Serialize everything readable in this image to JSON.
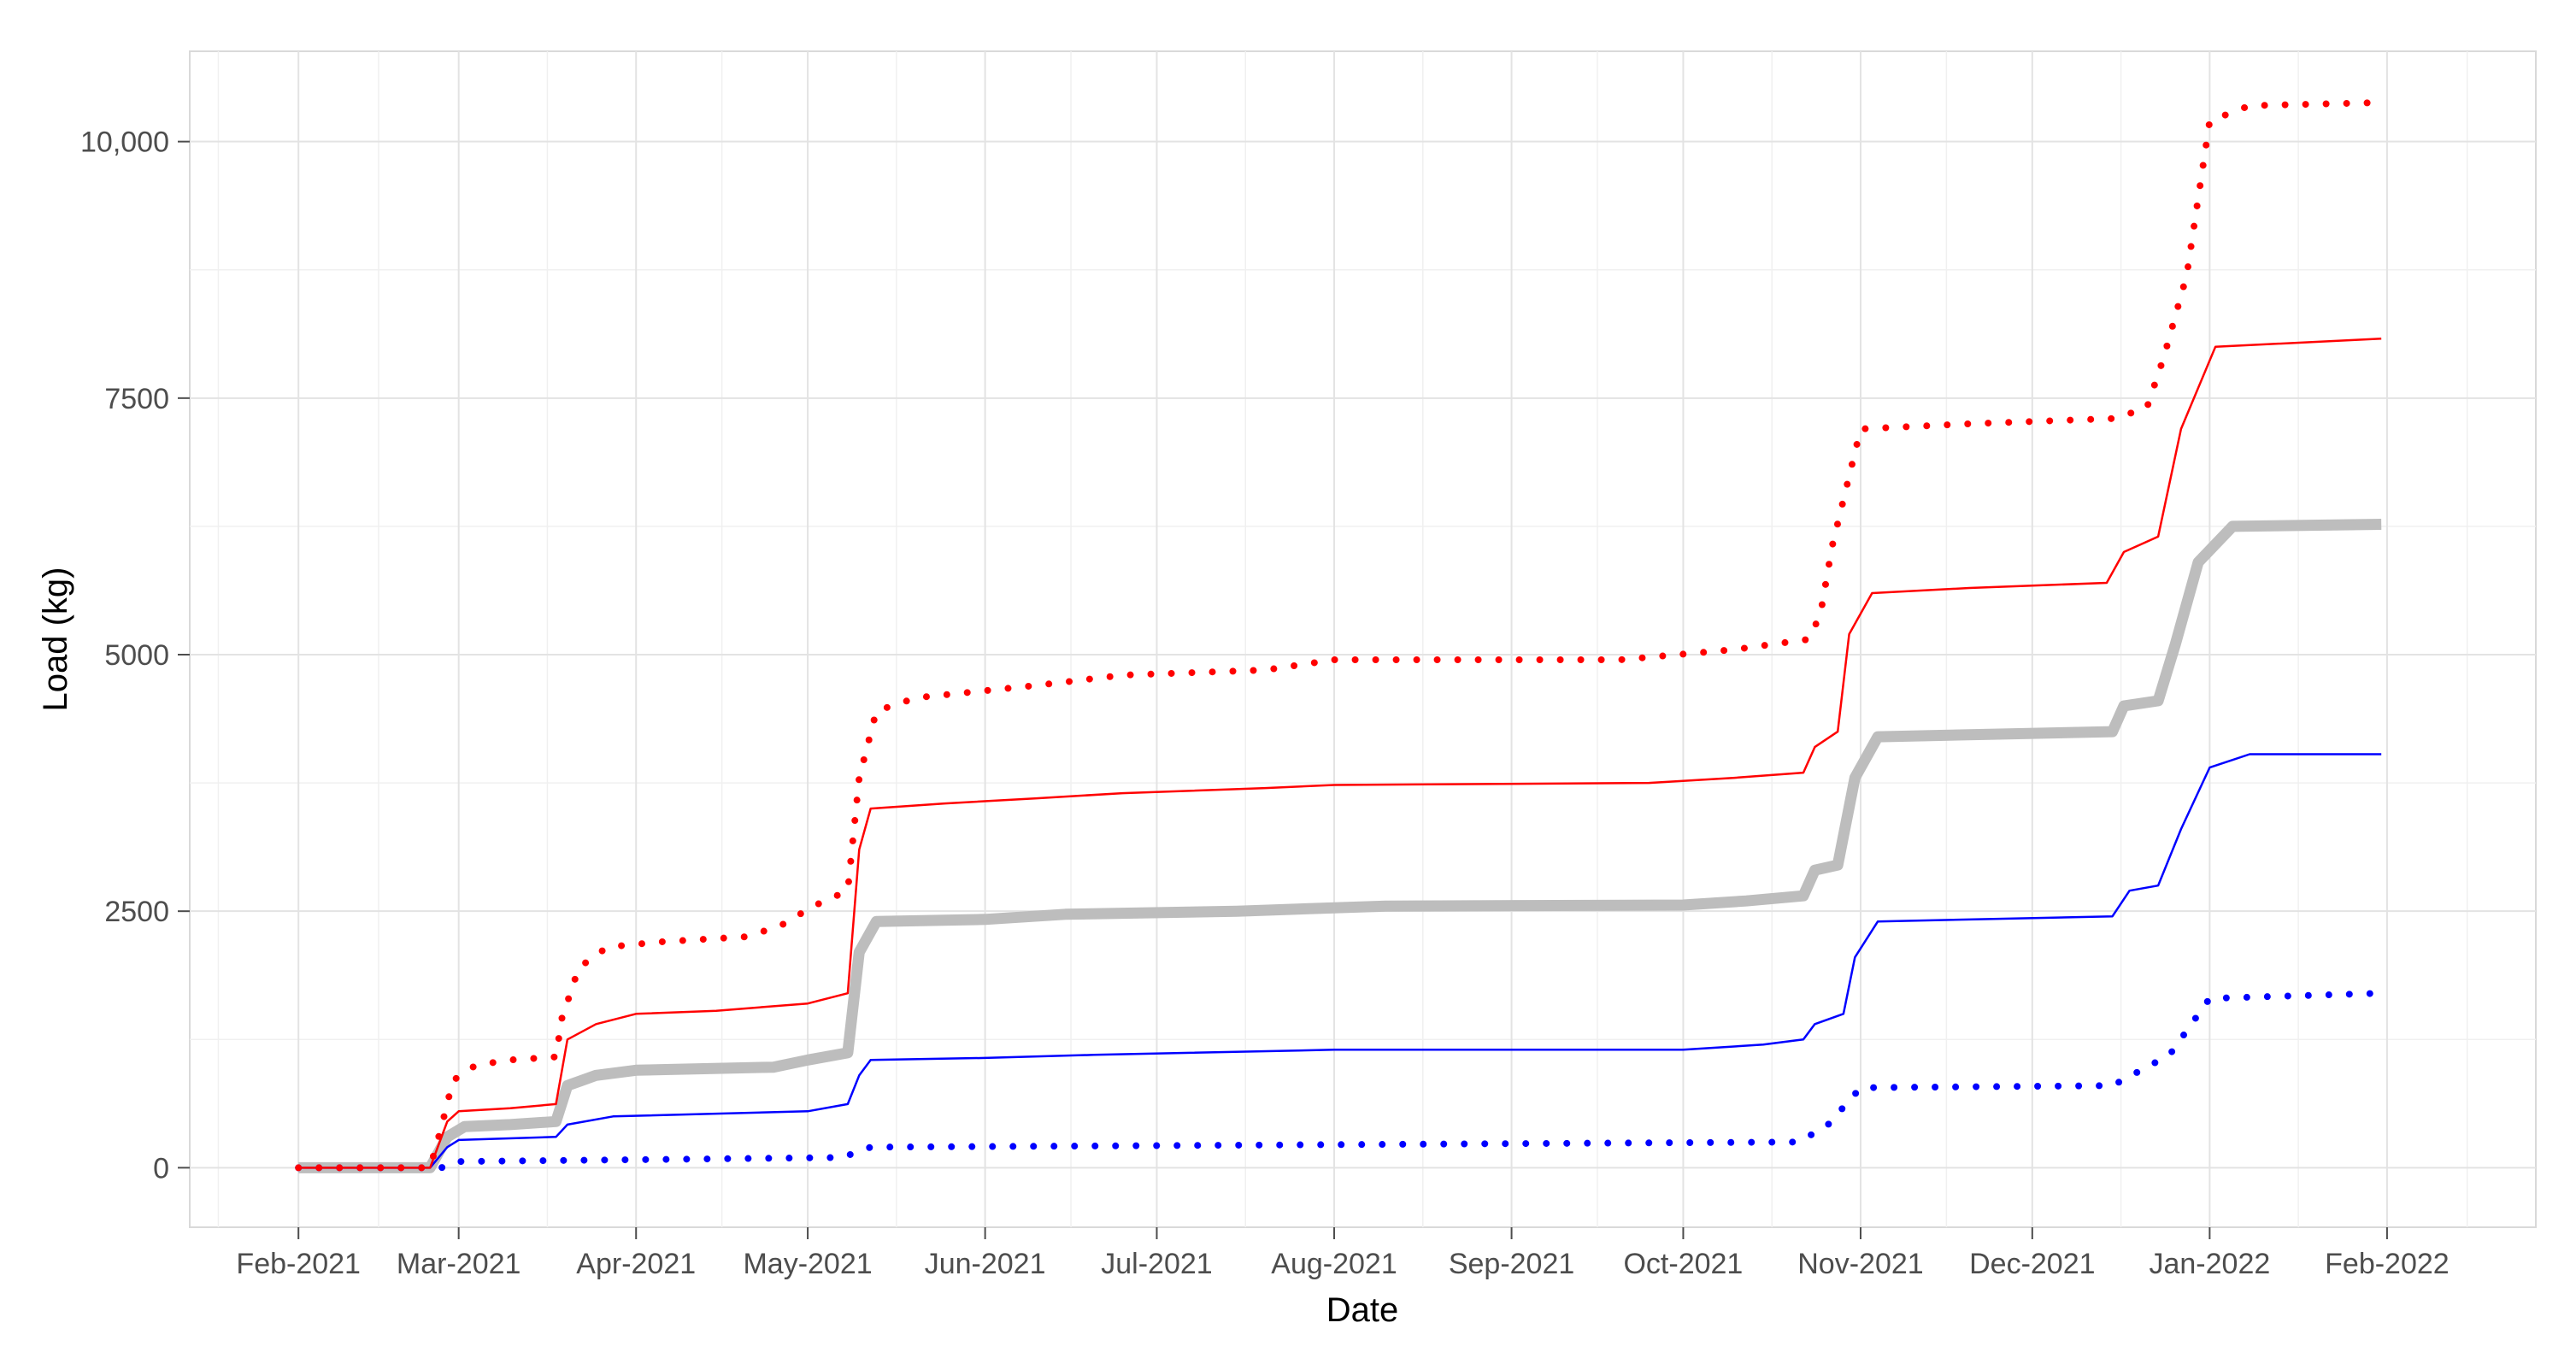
{
  "chart_data": {
    "type": "line",
    "title": "",
    "xlabel": "Date",
    "ylabel": "Load (kg)",
    "x_scale": "date",
    "xlim": [
      "2021-01-13",
      "2022-02-27"
    ],
    "ylim": [
      -580,
      10880
    ],
    "x_ticks": [
      {
        "date": "2021-02-01",
        "label": "Feb-2021"
      },
      {
        "date": "2021-03-01",
        "label": "Mar-2021"
      },
      {
        "date": "2021-04-01",
        "label": "Apr-2021"
      },
      {
        "date": "2021-05-01",
        "label": "May-2021"
      },
      {
        "date": "2021-06-01",
        "label": "Jun-2021"
      },
      {
        "date": "2021-07-01",
        "label": "Jul-2021"
      },
      {
        "date": "2021-08-01",
        "label": "Aug-2021"
      },
      {
        "date": "2021-09-01",
        "label": "Sep-2021"
      },
      {
        "date": "2021-10-01",
        "label": "Oct-2021"
      },
      {
        "date": "2021-11-01",
        "label": "Nov-2021"
      },
      {
        "date": "2021-12-01",
        "label": "Dec-2021"
      },
      {
        "date": "2022-01-01",
        "label": "Jan-2022"
      },
      {
        "date": "2022-02-01",
        "label": "Feb-2022"
      }
    ],
    "y_ticks": [
      {
        "value": 0,
        "label": "0"
      },
      {
        "value": 2500,
        "label": "2500"
      },
      {
        "value": 5000,
        "label": "5000"
      },
      {
        "value": 7500,
        "label": "7500"
      },
      {
        "value": 10000,
        "label": "10,000"
      }
    ],
    "grid": true,
    "legend": "none",
    "series": [
      {
        "color": "#ff0000",
        "style": "dotted",
        "points": [
          [
            "2021-02-01",
            0
          ],
          [
            "2021-02-24",
            0
          ],
          [
            "2021-02-26",
            400
          ],
          [
            "2021-02-28",
            850
          ],
          [
            "2021-03-04",
            1000
          ],
          [
            "2021-03-10",
            1050
          ],
          [
            "2021-03-18",
            1080
          ],
          [
            "2021-03-19",
            1450
          ],
          [
            "2021-03-22",
            1950
          ],
          [
            "2021-03-27",
            2150
          ],
          [
            "2021-04-05",
            2200
          ],
          [
            "2021-04-20",
            2250
          ],
          [
            "2021-04-26",
            2350
          ],
          [
            "2021-05-02",
            2550
          ],
          [
            "2021-05-08",
            2700
          ],
          [
            "2021-05-10",
            3800
          ],
          [
            "2021-05-13",
            4450
          ],
          [
            "2021-05-20",
            4580
          ],
          [
            "2021-06-10",
            4700
          ],
          [
            "2021-06-25",
            4800
          ],
          [
            "2021-07-20",
            4850
          ],
          [
            "2021-08-01",
            4950
          ],
          [
            "2021-09-20",
            4950
          ],
          [
            "2021-10-10",
            5050
          ],
          [
            "2021-10-23",
            5150
          ],
          [
            "2021-10-25",
            5400
          ],
          [
            "2021-10-27",
            6050
          ],
          [
            "2021-11-01",
            7200
          ],
          [
            "2021-11-20",
            7250
          ],
          [
            "2021-12-15",
            7300
          ],
          [
            "2021-12-21",
            7400
          ],
          [
            "2021-12-24",
            7900
          ],
          [
            "2021-12-28",
            8700
          ],
          [
            "2022-01-01",
            10200
          ],
          [
            "2022-01-08",
            10350
          ],
          [
            "2022-01-31",
            10380
          ]
        ]
      },
      {
        "color": "#ff0000",
        "style": "solid",
        "points": [
          [
            "2021-02-01",
            0
          ],
          [
            "2021-02-24",
            0
          ],
          [
            "2021-02-27",
            450
          ],
          [
            "2021-03-01",
            550
          ],
          [
            "2021-03-10",
            580
          ],
          [
            "2021-03-18",
            620
          ],
          [
            "2021-03-20",
            1250
          ],
          [
            "2021-03-25",
            1400
          ],
          [
            "2021-04-01",
            1500
          ],
          [
            "2021-04-15",
            1530
          ],
          [
            "2021-05-01",
            1600
          ],
          [
            "2021-05-08",
            1700
          ],
          [
            "2021-05-10",
            3100
          ],
          [
            "2021-05-12",
            3500
          ],
          [
            "2021-05-25",
            3550
          ],
          [
            "2021-06-10",
            3600
          ],
          [
            "2021-06-25",
            3650
          ],
          [
            "2021-07-20",
            3700
          ],
          [
            "2021-08-01",
            3730
          ],
          [
            "2021-09-25",
            3750
          ],
          [
            "2021-10-10",
            3800
          ],
          [
            "2021-10-22",
            3850
          ],
          [
            "2021-10-24",
            4100
          ],
          [
            "2021-10-28",
            4250
          ],
          [
            "2021-10-30",
            5200
          ],
          [
            "2021-11-03",
            5600
          ],
          [
            "2021-11-20",
            5650
          ],
          [
            "2021-12-14",
            5700
          ],
          [
            "2021-12-17",
            6000
          ],
          [
            "2021-12-23",
            6150
          ],
          [
            "2021-12-27",
            7200
          ],
          [
            "2022-01-02",
            8000
          ],
          [
            "2022-01-31",
            8080
          ]
        ]
      },
      {
        "color": "#bdbdbd",
        "style": "thick",
        "points": [
          [
            "2021-02-01",
            0
          ],
          [
            "2021-02-24",
            0
          ],
          [
            "2021-02-27",
            300
          ],
          [
            "2021-03-02",
            400
          ],
          [
            "2021-03-10",
            420
          ],
          [
            "2021-03-18",
            450
          ],
          [
            "2021-03-20",
            800
          ],
          [
            "2021-03-25",
            900
          ],
          [
            "2021-04-01",
            950
          ],
          [
            "2021-04-25",
            980
          ],
          [
            "2021-05-01",
            1050
          ],
          [
            "2021-05-08",
            1120
          ],
          [
            "2021-05-10",
            2100
          ],
          [
            "2021-05-13",
            2400
          ],
          [
            "2021-06-01",
            2420
          ],
          [
            "2021-06-15",
            2470
          ],
          [
            "2021-07-15",
            2500
          ],
          [
            "2021-08-10",
            2550
          ],
          [
            "2021-10-01",
            2560
          ],
          [
            "2021-10-12",
            2600
          ],
          [
            "2021-10-22",
            2650
          ],
          [
            "2021-10-24",
            2900
          ],
          [
            "2021-10-28",
            2950
          ],
          [
            "2021-10-31",
            3800
          ],
          [
            "2021-11-04",
            4200
          ],
          [
            "2021-12-15",
            4250
          ],
          [
            "2021-12-17",
            4500
          ],
          [
            "2021-12-23",
            4550
          ],
          [
            "2021-12-26",
            5100
          ],
          [
            "2021-12-30",
            5900
          ],
          [
            "2022-01-05",
            6250
          ],
          [
            "2022-01-31",
            6270
          ]
        ]
      },
      {
        "color": "#0000ff",
        "style": "solid",
        "points": [
          [
            "2021-02-01",
            0
          ],
          [
            "2021-02-24",
            0
          ],
          [
            "2021-02-27",
            200
          ],
          [
            "2021-03-01",
            270
          ],
          [
            "2021-03-18",
            300
          ],
          [
            "2021-03-20",
            420
          ],
          [
            "2021-03-28",
            500
          ],
          [
            "2021-05-01",
            550
          ],
          [
            "2021-05-08",
            620
          ],
          [
            "2021-05-10",
            900
          ],
          [
            "2021-05-12",
            1050
          ],
          [
            "2021-06-01",
            1070
          ],
          [
            "2021-06-20",
            1100
          ],
          [
            "2021-08-01",
            1150
          ],
          [
            "2021-10-01",
            1150
          ],
          [
            "2021-10-15",
            1200
          ],
          [
            "2021-10-22",
            1250
          ],
          [
            "2021-10-24",
            1400
          ],
          [
            "2021-10-29",
            1500
          ],
          [
            "2021-10-31",
            2050
          ],
          [
            "2021-11-04",
            2400
          ],
          [
            "2021-12-15",
            2450
          ],
          [
            "2021-12-18",
            2700
          ],
          [
            "2021-12-23",
            2750
          ],
          [
            "2021-12-27",
            3300
          ],
          [
            "2022-01-01",
            3900
          ],
          [
            "2022-01-08",
            4030
          ],
          [
            "2022-01-31",
            4030
          ]
        ]
      },
      {
        "color": "#0000ff",
        "style": "dotted",
        "points": [
          [
            "2021-02-01",
            0
          ],
          [
            "2021-02-26",
            0
          ],
          [
            "2021-02-28",
            60
          ],
          [
            "2021-05-07",
            100
          ],
          [
            "2021-05-12",
            200
          ],
          [
            "2021-06-15",
            210
          ],
          [
            "2021-10-21",
            250
          ],
          [
            "2021-10-26",
            400
          ],
          [
            "2021-11-01",
            780
          ],
          [
            "2021-12-15",
            800
          ],
          [
            "2021-12-20",
            950
          ],
          [
            "2021-12-25",
            1100
          ],
          [
            "2022-01-01",
            1650
          ],
          [
            "2022-01-31",
            1700
          ]
        ]
      }
    ]
  }
}
